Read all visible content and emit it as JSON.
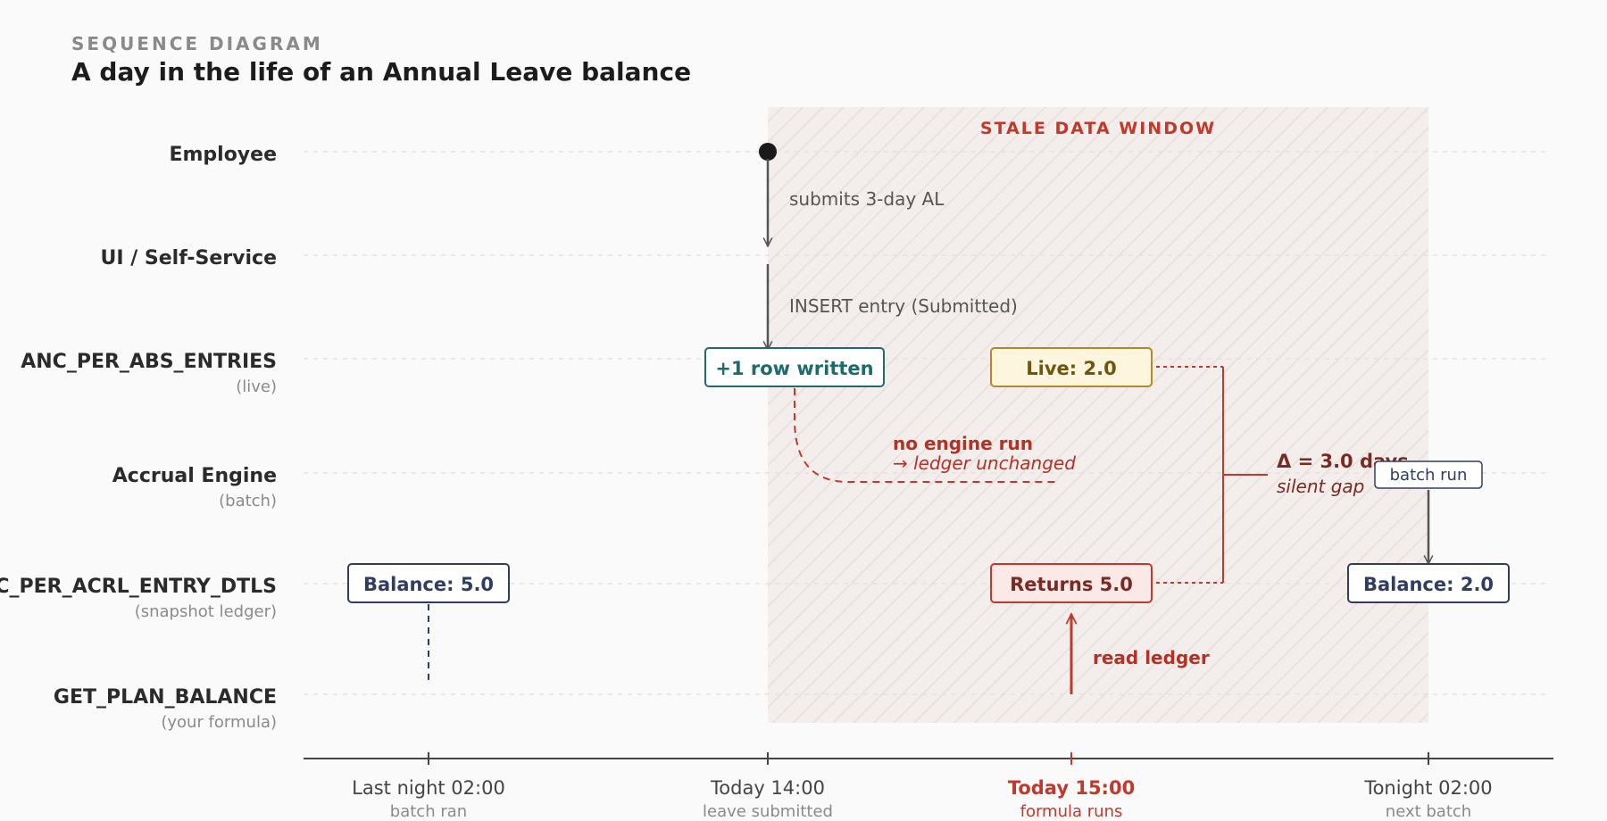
{
  "header": {
    "kicker": "SEQUENCE DIAGRAM",
    "title": "A day in the life of an Annual Leave balance"
  },
  "lanes": [
    {
      "name": "Employee",
      "sub": ""
    },
    {
      "name": "UI / Self-Service",
      "sub": ""
    },
    {
      "name": "ANC_PER_ABS_ENTRIES",
      "sub": "(live)"
    },
    {
      "name": "Accrual Engine",
      "sub": "(batch)"
    },
    {
      "name": "ANC_PER_ACRL_ENTRY_DTLS",
      "sub": "(snapshot ledger)"
    },
    {
      "name": "GET_PLAN_BALANCE",
      "sub": "(your formula)"
    }
  ],
  "timeline": [
    {
      "label": "Last night 02:00",
      "sub": "batch ran",
      "highlight": false
    },
    {
      "label": "Today 14:00",
      "sub": "leave submitted",
      "highlight": false
    },
    {
      "label": "Today 15:00",
      "sub": "formula runs",
      "highlight": true
    },
    {
      "label": "Tonight 02:00",
      "sub": "next batch",
      "highlight": false
    }
  ],
  "stale_window": {
    "label": "STALE DATA WINDOW"
  },
  "messages": {
    "submit": "submits 3-day AL",
    "insert": "INSERT entry (Submitted)",
    "read": "read ledger"
  },
  "boxes": {
    "balance_before": "Balance: 5.0",
    "row_written": "+1 row written",
    "live": "Live: 2.0",
    "returns": "Returns 5.0",
    "balance_after": "Balance: 2.0",
    "batch_run": "batch run"
  },
  "notes": {
    "no_engine_title": "no engine run",
    "no_engine_sub": "→ ledger unchanged",
    "delta_title": "Δ = 3.0 days",
    "delta_sub": "silent gap"
  },
  "colors": {
    "highlight": "#c0392b",
    "teal": "#1d6b6b",
    "navy": "#2f3d66",
    "amber": "#b08a2a",
    "dark": "#555555"
  }
}
